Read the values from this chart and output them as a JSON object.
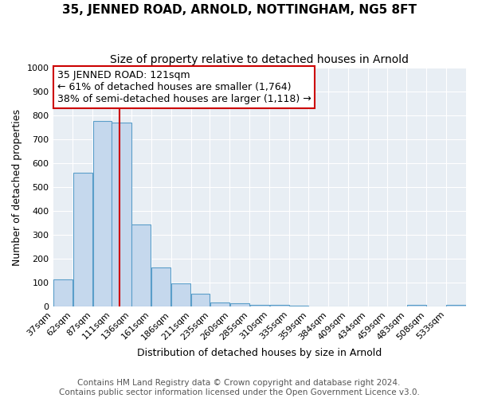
{
  "title": "35, JENNED ROAD, ARNOLD, NOTTINGHAM, NG5 8FT",
  "subtitle": "Size of property relative to detached houses in Arnold",
  "xlabel": "Distribution of detached houses by size in Arnold",
  "ylabel": "Number of detached properties",
  "bar_labels": [
    "37sqm",
    "62sqm",
    "87sqm",
    "111sqm",
    "136sqm",
    "161sqm",
    "186sqm",
    "211sqm",
    "235sqm",
    "260sqm",
    "285sqm",
    "310sqm",
    "335sqm",
    "359sqm",
    "384sqm",
    "409sqm",
    "434sqm",
    "459sqm",
    "483sqm",
    "508sqm",
    "533sqm"
  ],
  "bar_values": [
    113,
    560,
    778,
    770,
    345,
    163,
    97,
    52,
    15,
    12,
    8,
    5,
    3,
    0,
    0,
    0,
    0,
    0,
    8,
    0,
    8
  ],
  "bar_color": "#c5d8ed",
  "bar_edge_color": "#5a9ec9",
  "bin_edges": [
    37,
    62,
    87,
    111,
    136,
    161,
    186,
    211,
    235,
    260,
    285,
    310,
    335,
    359,
    384,
    409,
    434,
    459,
    483,
    508,
    533,
    558
  ],
  "vline_x": 121,
  "annotation_text_line1": "35 JENNED ROAD: 121sqm",
  "annotation_text_line2": "← 61% of detached houses are smaller (1,764)",
  "annotation_text_line3": "38% of semi-detached houses are larger (1,118) →",
  "box_facecolor": "#ffffff",
  "box_edgecolor": "#cc0000",
  "vline_color": "#cc0000",
  "ylim": [
    0,
    1000
  ],
  "yticks": [
    0,
    100,
    200,
    300,
    400,
    500,
    600,
    700,
    800,
    900,
    1000
  ],
  "plot_bg_color": "#e8eef4",
  "fig_bg_color": "#ffffff",
  "grid_color": "#ffffff",
  "title_fontsize": 11,
  "subtitle_fontsize": 10,
  "axis_label_fontsize": 9,
  "tick_fontsize": 8,
  "annotation_fontsize": 9,
  "footer_fontsize": 7.5,
  "footer_line1": "Contains HM Land Registry data © Crown copyright and database right 2024.",
  "footer_line2": "Contains public sector information licensed under the Open Government Licence v3.0."
}
